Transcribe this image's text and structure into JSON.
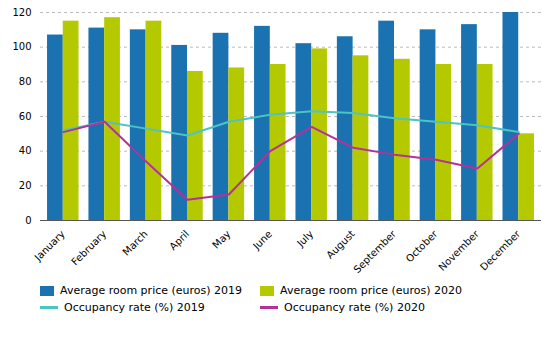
{
  "chart_data": {
    "type": "bar",
    "categories": [
      "January",
      "February",
      "March",
      "April",
      "May",
      "June",
      "July",
      "August",
      "September",
      "October",
      "November",
      "December"
    ],
    "series": [
      {
        "name": "Average room price (euros) 2019",
        "type": "bar",
        "color": "#1a72b0",
        "values": [
          107,
          111,
          110,
          101,
          108,
          112,
          102,
          106,
          115,
          110,
          113,
          120
        ]
      },
      {
        "name": "Average room price (euros) 2020",
        "type": "bar",
        "color": "#b5c900",
        "values": [
          115,
          117,
          115,
          86,
          88,
          90,
          99,
          95,
          93,
          90,
          90,
          50
        ]
      },
      {
        "name": "Occupancy rate (%) 2019",
        "type": "line",
        "color": "#4cc4c4",
        "values": [
          52,
          57,
          53,
          49,
          57,
          61,
          63,
          62,
          59,
          57,
          55,
          51
        ]
      },
      {
        "name": "Occupancy rate (%) 2020",
        "type": "line",
        "color": "#b5319a",
        "values": [
          51,
          57,
          34,
          12,
          15,
          40,
          54,
          42,
          38,
          35,
          30,
          50
        ]
      }
    ],
    "ylim": [
      0,
      120
    ],
    "yticks": [
      0,
      20,
      40,
      60,
      80,
      100,
      120
    ],
    "grid": true,
    "legend": "bottom"
  }
}
